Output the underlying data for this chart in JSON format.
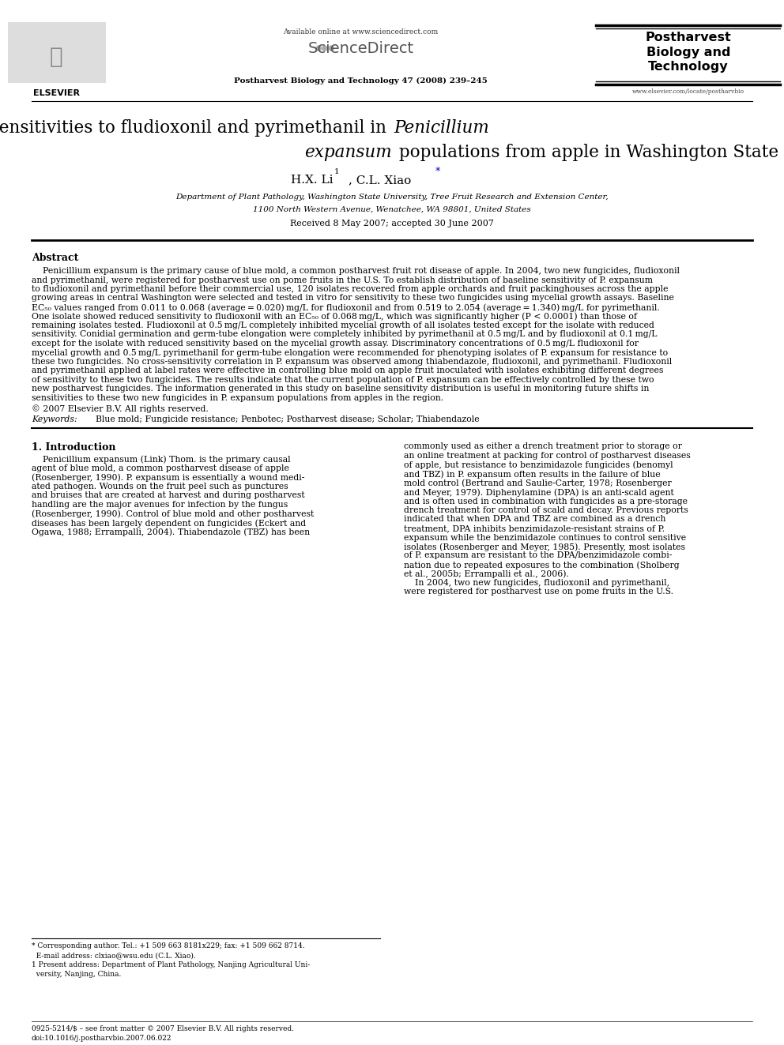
{
  "background_color": "#ffffff",
  "page_width": 9.92,
  "page_height": 13.23,
  "header_available_online": "Available online at www.sciencedirect.com",
  "header_journal_info": "Postharvest Biology and Technology 47 (2008) 239–245",
  "header_journal_name_right": "Postharvest\nBiology and\nTechnology",
  "header_website_right": "www.elsevier.com/locate/postharvbio",
  "header_elsevier_label": "ELSEVIER",
  "title_line1_normal": "Baseline sensitivities to fludioxonil and pyrimethanil in ",
  "title_line1_italic": "Penicillium",
  "title_line2_italic": "expansum",
  "title_line2_normal": " populations from apple in Washington State",
  "authors_part1": "H.X. Li",
  "authors_super1": "1",
  "authors_part2": ", C.L. Xiao",
  "authors_super2": "*",
  "affiliation1": "Department of Plant Pathology, Washington State University, Tree Fruit Research and Extension Center,",
  "affiliation2": "1100 North Western Avenue, Wenatchee, WA 98801, United States",
  "received": "Received 8 May 2007; accepted 30 June 2007",
  "abstract_title": "Abstract",
  "copyright": "© 2007 Elsevier B.V. All rights reserved.",
  "keywords_label": "Keywords:",
  "keywords_text": "  Blue mold; Fungicide resistance; Penbotec; Postharvest disease; Scholar; Thiabendazole",
  "intro_title": "1. Introduction",
  "footnote1": "* Corresponding author. Tel.: +1 509 663 8181x229; fax: +1 509 662 8714.",
  "footnote2": "  E-mail address: clxiao@wsu.edu (C.L. Xiao).",
  "footnote3": "1 Present address: Department of Plant Pathology, Nanjing Agricultural Uni-",
  "footnote4": "  versity, Nanjing, China.",
  "footer_left": "0925-5214/$ – see front matter © 2007 Elsevier B.V. All rights reserved.",
  "footer_doi": "doi:10.1016/j.postharvbio.2007.06.022"
}
